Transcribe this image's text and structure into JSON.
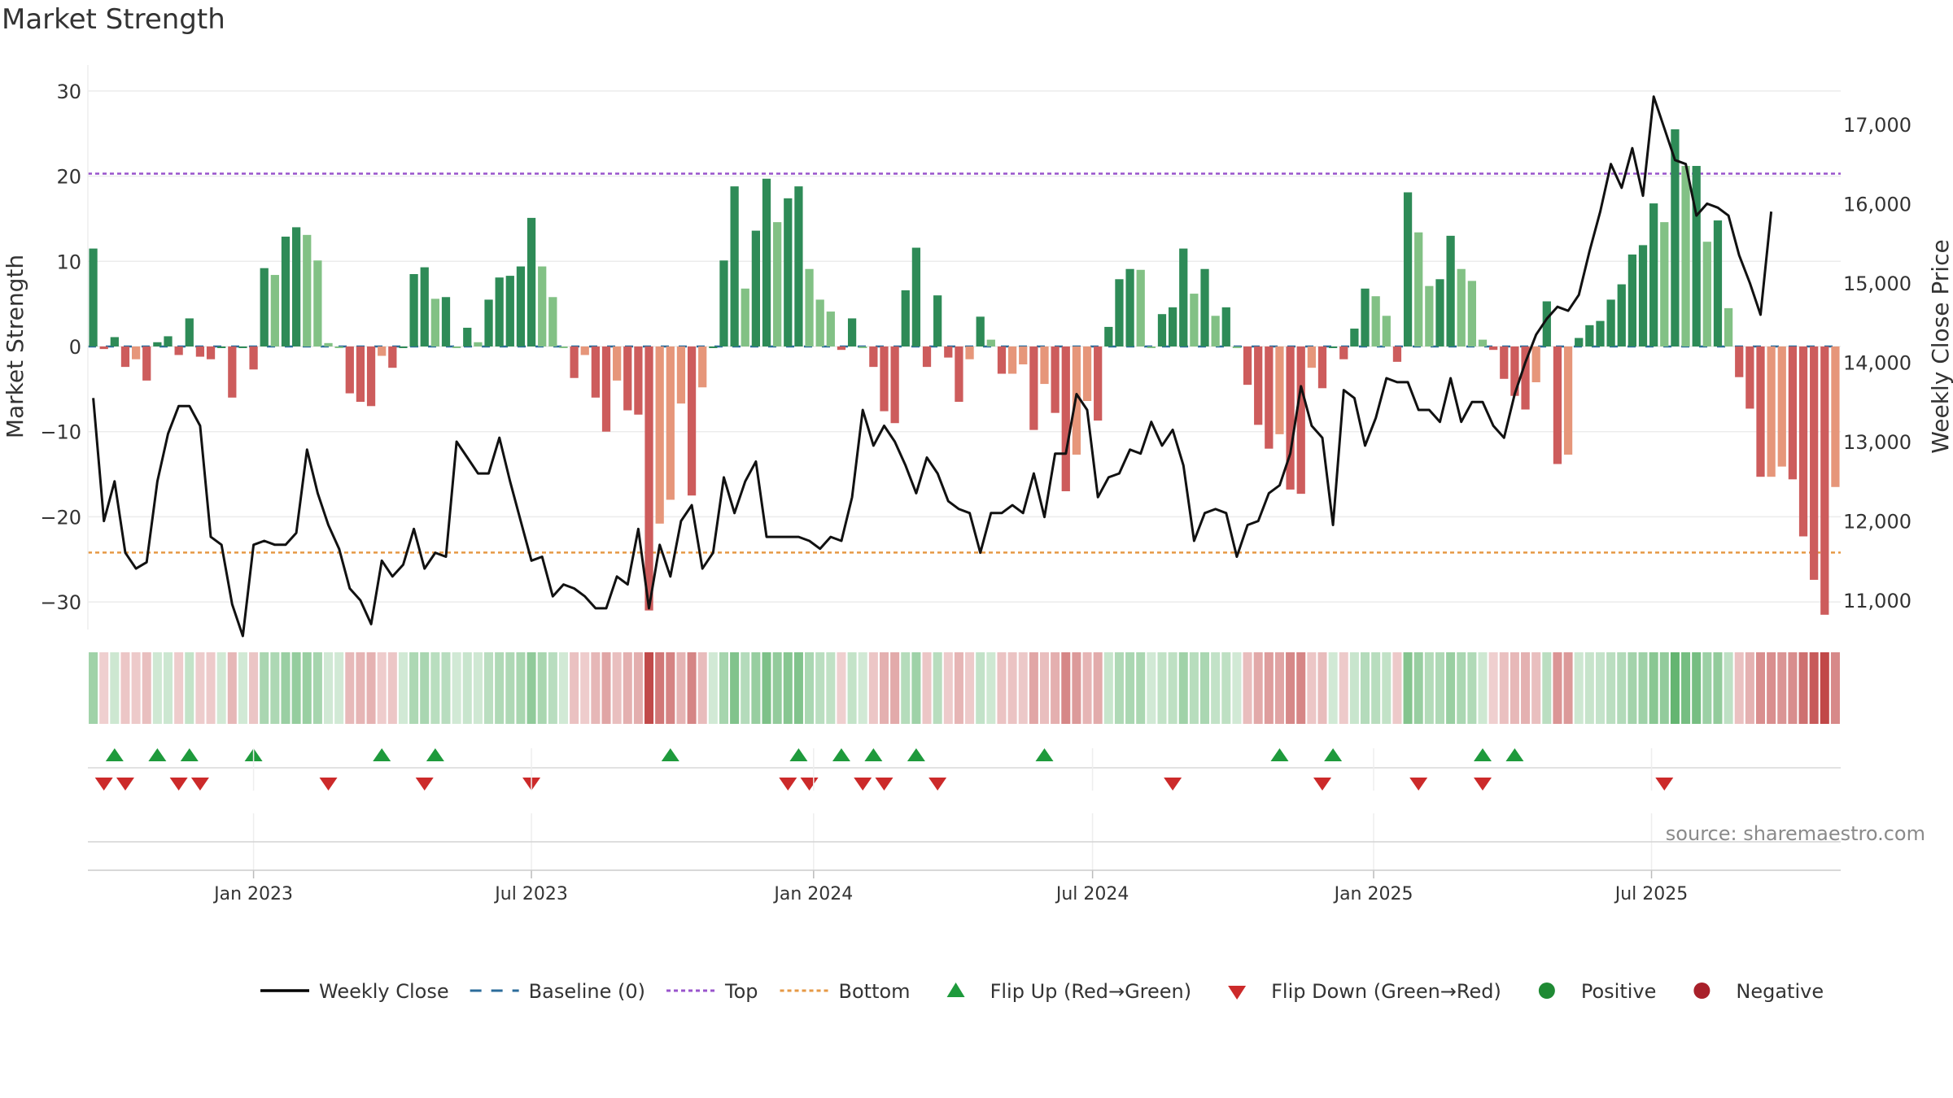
{
  "chart_data": {
    "type": "bar",
    "title": "Market Strength",
    "ylabel": "Market Strength",
    "y2label": "Weekly Close Price",
    "ylim": [
      -34,
      34
    ],
    "y2lim": [
      10550,
      17850
    ],
    "yticks": [
      30,
      20,
      10,
      0,
      -10,
      -20,
      -30
    ],
    "y2ticks": [
      17000,
      16000,
      15000,
      14000,
      13000,
      12000,
      11000
    ],
    "y2tick_labels": [
      "17,000",
      "16,000",
      "15,000",
      "14,000",
      "13,000",
      "12,000",
      "11,000"
    ],
    "top_line": 20.3,
    "bottom_line": -24.2,
    "xtick_labels": [
      "Jan 2023",
      "Jul 2023",
      "Jan 2024",
      "Jul 2024",
      "Jan 2025",
      "Jul 2025"
    ],
    "xtick_index": [
      15,
      41,
      67.4,
      93.5,
      119.8,
      145.8
    ],
    "strength": [
      11.5,
      -0.3,
      1.1,
      -2.4,
      -1.5,
      -4,
      0.5,
      1.2,
      -1,
      3.3,
      -1.2,
      -1.5,
      0,
      -6,
      0,
      -2.7,
      9.2,
      8.4,
      12.9,
      14,
      13.1,
      10.1,
      0.4,
      0,
      -5.5,
      -6.5,
      -7,
      -1.1,
      -2.5,
      0,
      8.5,
      9.3,
      5.6,
      5.8,
      0,
      2.2,
      0.5,
      5.5,
      8.1,
      8.3,
      9.4,
      15.1,
      9.4,
      5.8,
      0,
      -3.7,
      -1,
      -6,
      -10,
      -4,
      -7.5,
      -8,
      -31,
      -20.8,
      -18,
      -6.7,
      -17.5,
      -4.8,
      0,
      10.1,
      18.8,
      6.8,
      13.6,
      19.7,
      14.6,
      17.4,
      18.8,
      9.1,
      5.5,
      4.1,
      -0.4,
      3.3,
      0,
      -2.4,
      -7.6,
      -9,
      6.6,
      11.6,
      -2.4,
      6,
      -1.3,
      -6.5,
      -1.5,
      3.5,
      0.8,
      -3.2,
      -3.2,
      -2.1,
      -9.8,
      -4.4,
      -7.8,
      -17,
      -12.7,
      -6.4,
      -8.7,
      2.3,
      7.9,
      9.1,
      9,
      0,
      3.8,
      4.6,
      11.5,
      6.2,
      9.1,
      3.6,
      4.6,
      0,
      -4.5,
      -9.2,
      -12,
      -10.3,
      -16.8,
      -17.3,
      -2.5,
      -4.9,
      0,
      -1.5,
      2.1,
      6.8,
      5.9,
      3.6,
      -1.8,
      18.1,
      13.4,
      7.1,
      7.9,
      13,
      9.1,
      7.7,
      0.8,
      -0.4,
      -3.8,
      -5.8,
      -7.4,
      -4.2,
      5.3,
      -13.8,
      -12.7,
      1,
      2.5,
      3,
      5.5,
      7.3,
      10.8,
      11.9,
      16.8,
      14.6,
      25.5,
      21.2,
      21.2,
      12.3,
      14.8,
      4.5,
      -3.6,
      -7.3,
      -15.3,
      -15.3,
      -14.1,
      -15.6,
      -22.3,
      -27.4,
      -31.5,
      -16.5
    ],
    "weekly_close": [
      13550,
      12000,
      12500,
      11600,
      11400,
      11480,
      12500,
      13100,
      13450,
      13450,
      13200,
      11800,
      11700,
      10950,
      10550,
      11700,
      11750,
      11700,
      11700,
      11850,
      12900,
      12350,
      11950,
      11650,
      11150,
      11000,
      10700,
      11500,
      11300,
      11450,
      11900,
      11400,
      11600,
      11550,
      13000,
      12800,
      12600,
      12600,
      13050,
      12500,
      12000,
      11500,
      11550,
      11050,
      11200,
      11150,
      11050,
      10900,
      10900,
      11300,
      11200,
      11900,
      10900,
      11700,
      11300,
      12000,
      12200,
      11400,
      11600,
      12550,
      12100,
      12500,
      12750,
      11800,
      11800,
      11800,
      11800,
      11750,
      11650,
      11800,
      11750,
      12300,
      13400,
      12950,
      13200,
      13000,
      12700,
      12350,
      12800,
      12600,
      12250,
      12150,
      12100,
      11600,
      12100,
      12100,
      12200,
      12100,
      12600,
      12050,
      12850,
      12850,
      13600,
      13400,
      12300,
      12550,
      12600,
      12900,
      12850,
      13250,
      12950,
      13150,
      12700,
      11750,
      12100,
      12150,
      12100,
      11550,
      11950,
      12000,
      12350,
      12450,
      12850,
      13700,
      13200,
      13050,
      11950,
      13650,
      13550,
      12950,
      13300,
      13800,
      13750,
      13750,
      13400,
      13400,
      13250,
      13800,
      13250,
      13500,
      13500,
      13200,
      13050,
      13600,
      14000,
      14350,
      14550,
      14700,
      14650,
      14850,
      15400,
      15900,
      16500,
      16200,
      16700,
      16100,
      17350,
      16950,
      16550,
      16500,
      15850,
      16000,
      15950,
      15850,
      15350,
      15000,
      14600,
      15900
    ],
    "flip_up_index": [
      2,
      6,
      9,
      15,
      27,
      32,
      54,
      66,
      70,
      73,
      77,
      89,
      111,
      116,
      130,
      133
    ],
    "flip_down_index": [
      1,
      3,
      8,
      10,
      22,
      31,
      41,
      65,
      67,
      72,
      74,
      79,
      101,
      115,
      124,
      130,
      147
    ],
    "source": "source: sharemaestro.com",
    "legend": [
      {
        "label": "Weekly Close",
        "symbol": "line",
        "color": "#000000"
      },
      {
        "label": "Baseline (0)",
        "symbol": "dash",
        "color": "#2b6c9b"
      },
      {
        "label": "Top",
        "symbol": "dot",
        "color": "#9954cc"
      },
      {
        "label": "Bottom",
        "symbol": "dot",
        "color": "#e69946"
      },
      {
        "label": "Flip Up (Red→Green)",
        "symbol": "tri-up",
        "color": "#1e9a3c"
      },
      {
        "label": "Flip Down (Green→Red)",
        "symbol": "tri-down",
        "color": "#cc2a2a"
      },
      {
        "label": "Positive",
        "symbol": "circle",
        "color": "#1f8a34"
      },
      {
        "label": "Negative",
        "symbol": "circle",
        "color": "#a8202a"
      }
    ]
  }
}
